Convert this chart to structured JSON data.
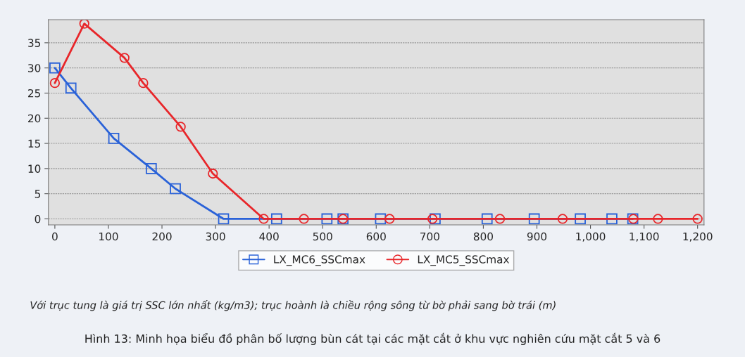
{
  "chart_data": {
    "type": "line",
    "xlim": [
      -12,
      1212
    ],
    "ylim": [
      -1.2,
      39.6
    ],
    "xticks": [
      0,
      100,
      200,
      300,
      400,
      500,
      600,
      700,
      800,
      900,
      {
        "value": 1000,
        "label": "1,000"
      },
      {
        "value": 1100,
        "label": "1,100"
      },
      {
        "value": 1200,
        "label": "1,200"
      }
    ],
    "yticks": [
      0,
      5,
      10,
      15,
      20,
      25,
      30,
      35
    ],
    "grid": "y",
    "legend": "bottom",
    "line_style": "solid",
    "series": [
      {
        "name": "LX_MC6_SSCmax",
        "color": "#2a62d8",
        "marker": "square",
        "x": [
          0,
          30,
          110,
          180,
          225,
          315,
          414,
          508,
          538,
          608,
          710,
          807,
          895,
          981,
          1040,
          1079
        ],
        "values": [
          30,
          26,
          16,
          10,
          6,
          0,
          0,
          0,
          0,
          0,
          0,
          0,
          0,
          0,
          0,
          0
        ]
      },
      {
        "name": "LX_MC5_SSCmax",
        "color": "#e8262a",
        "marker": "circle",
        "x": [
          0,
          55,
          130,
          165,
          235,
          295,
          390,
          465,
          538,
          625,
          705,
          831,
          948,
          1080,
          1126,
          1200
        ],
        "values": [
          27,
          38.8,
          32,
          27,
          18.3,
          9,
          0,
          0,
          0,
          0,
          0,
          0,
          0,
          0,
          0,
          0
        ]
      }
    ],
    "annotations": [
      "Với trục tung là giá trị SSC lớn nhất (kg/m3); trục hoành là chiều rộng sông từ bờ phải sang bờ trái (m)",
      "Hình 13: Minh họa biểu đồ phân bố lượng bùn cát tại các mặt cắt ở khu vực nghiên cứu mặt cắt 5 và 6"
    ]
  }
}
